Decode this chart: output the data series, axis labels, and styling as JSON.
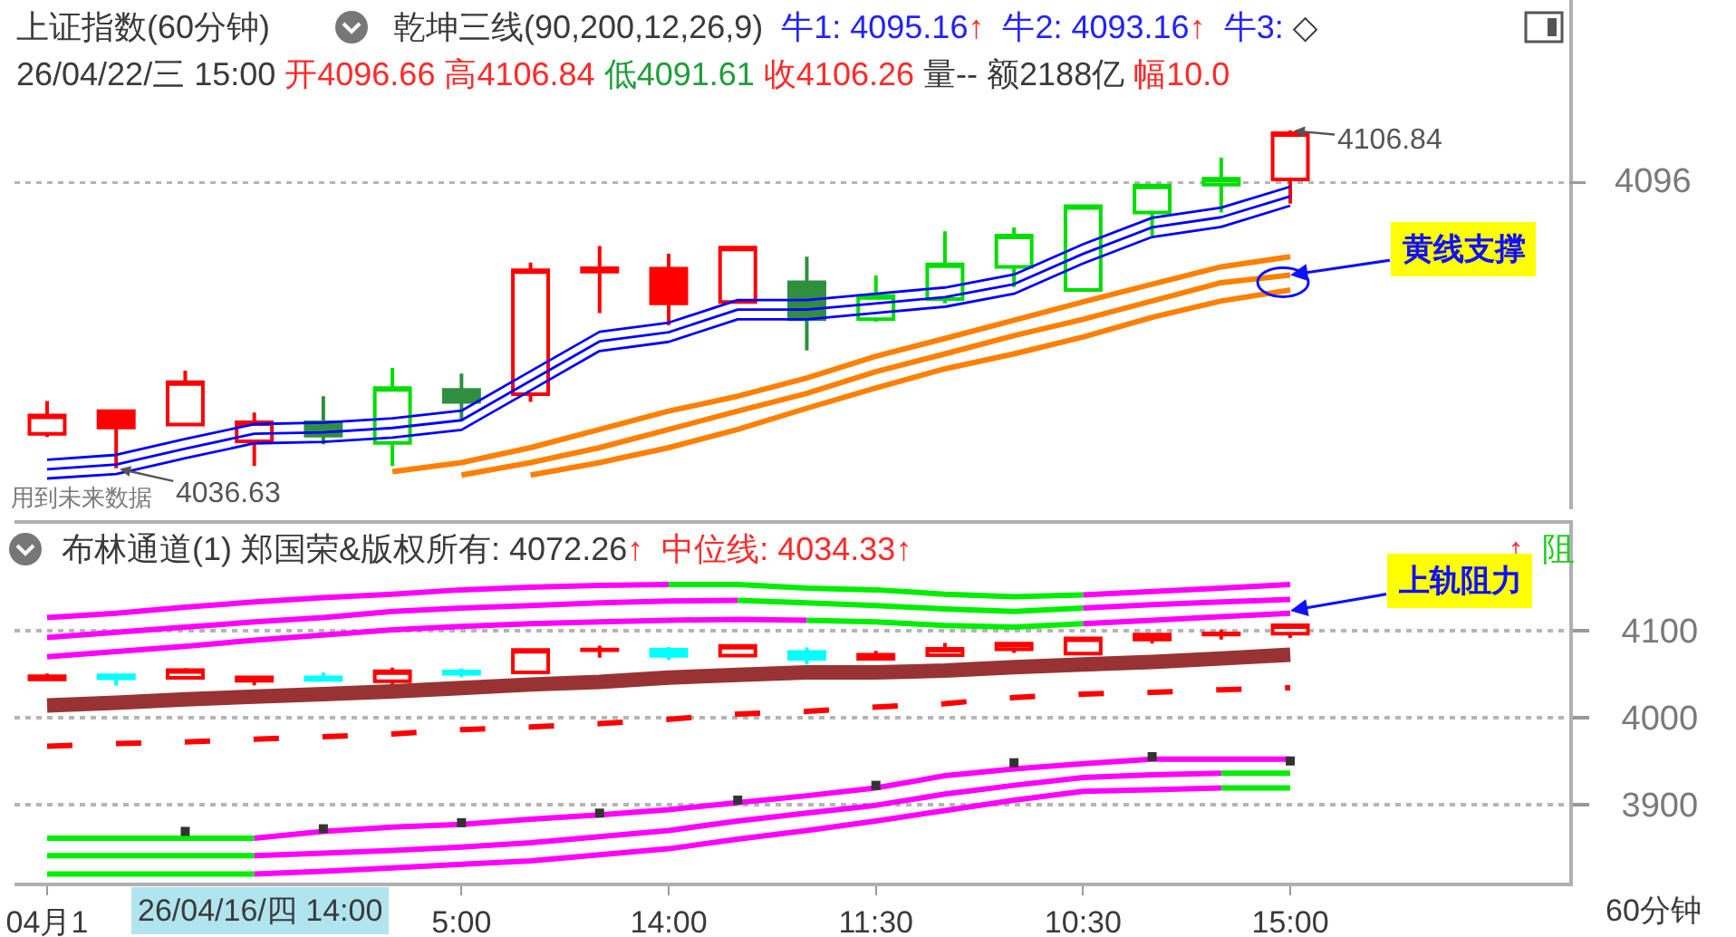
{
  "chart_data": [
    {
      "type": "candlestick",
      "title": "上证指数(60分钟)",
      "subtitle": "乾坤三线(90,200,12,26,9)",
      "categories": [
        null,
        null,
        null,
        null,
        null,
        null,
        null,
        null,
        null,
        null,
        null,
        null,
        null,
        null,
        null,
        null,
        null,
        null,
        null
      ],
      "ohlc": [
        [
          4043.8,
          4050.6,
          4043.1,
          4047.6
        ],
        [
          4048.5,
          4048.8,
          4036.63,
          4045.1
        ],
        [
          4045.7,
          4056.9,
          4045.7,
          4054.5
        ],
        [
          4042.2,
          4048.2,
          4037.1,
          4046.2
        ],
        [
          4046.2,
          4051.6,
          4041.6,
          4043.4
        ],
        [
          4041.9,
          4057.5,
          4037.1,
          4053.3
        ],
        [
          4052.9,
          4056.3,
          4046.4,
          4050.4
        ],
        [
          4052.0,
          4079.4,
          4050.4,
          4077.8
        ],
        [
          4077.5,
          4082.8,
          4068.9,
          4078.2
        ],
        [
          4078.1,
          4081.2,
          4066.4,
          4070.9
        ],
        [
          4071.2,
          4082.5,
          4071.2,
          4082.5
        ],
        [
          4075.3,
          4080.6,
          4061.1,
          4067.6
        ],
        [
          4067.6,
          4076.7,
          4067.1,
          4072.4
        ],
        [
          4071.8,
          4085.9,
          4070.9,
          4079.0
        ],
        [
          4078.5,
          4086.7,
          4074.3,
          4085.0
        ],
        [
          4073.7,
          4091.3,
          4073.7,
          4091.1
        ],
        [
          4089.8,
          4095.7,
          4085.0,
          4095.4
        ],
        [
          4095.6,
          4101.2,
          4089.8,
          4096.8
        ],
        [
          4096.66,
          4106.84,
          4091.61,
          4106.26
        ]
      ],
      "colors": [
        "#ff0000",
        "#ff0000",
        "#ff0000",
        "#ff0000",
        "#2f8f3f",
        "#00dd00",
        "#2f8f3f",
        "#ff0000",
        "#ff0000",
        "#ff0000",
        "#ff0000",
        "#2f8f3f",
        "#00dd00",
        "#00dd00",
        "#00dd00",
        "#00dd00",
        "#00dd00",
        "#00dd00",
        "#ff0000"
      ],
      "series": [
        {
          "type": "line",
          "color": "#0000ff",
          "values": [
            4038.4,
            4039.4,
            4042.7,
            4045.8,
            4046.1,
            4047.0,
            4048.6,
            4056.8,
            4065.0,
            4066.9,
            4071.6,
            4071.6,
            4072.9,
            4074.2,
            4076.9,
            4083.2,
            4088.7,
            4090.8,
            4095.16
          ]
        },
        {
          "type": "line",
          "color": "#0000ff",
          "values": [
            4036.4,
            4037.4,
            4040.7,
            4043.8,
            4044.1,
            4045.0,
            4046.6,
            4054.8,
            4063.0,
            4064.9,
            4069.6,
            4069.6,
            4070.9,
            4072.2,
            4074.9,
            4081.2,
            4086.7,
            4088.8,
            4093.16
          ]
        },
        {
          "type": "line",
          "color": "#0000ff",
          "values": [
            4034.5,
            4035.4,
            4038.7,
            4041.8,
            4042.1,
            4043.0,
            4044.6,
            4052.8,
            4061.0,
            4062.9,
            4067.6,
            4067.6,
            4068.9,
            4070.2,
            4072.9,
            4079.2,
            4084.7,
            4086.8,
            4091.2
          ]
        },
        {
          "type": "line",
          "color": "#ff8000",
          "values": [
            null,
            null,
            null,
            null,
            null,
            4035.9,
            4037.8,
            4040.9,
            4044.7,
            4048.5,
            4051.6,
            4055.4,
            4059.9,
            4063.6,
            4067.4,
            4071.2,
            4074.9,
            4078.5,
            4080.6
          ]
        },
        {
          "type": "line",
          "color": "#ff8000",
          "values": [
            null,
            null,
            null,
            null,
            null,
            null,
            4035.2,
            4037.8,
            4040.9,
            4044.7,
            4048.5,
            4052.2,
            4056.7,
            4060.4,
            4064.2,
            4067.6,
            4071.4,
            4075.2,
            4076.8
          ]
        },
        {
          "type": "line",
          "color": "#ff8000",
          "values": [
            null,
            null,
            null,
            null,
            null,
            null,
            null,
            4035.2,
            4037.8,
            4040.9,
            4044.7,
            4049.1,
            4053.3,
            4057.3,
            4060.4,
            4063.9,
            4068.0,
            4071.4,
            4073.7
          ]
        }
      ],
      "ref_lines": [
        {
          "axis": "y",
          "value": 4096,
          "label": "4096",
          "color": "#b5b5b5",
          "line_style": "dotted"
        }
      ],
      "annotations": [
        "牛1: 4095.16",
        "↑",
        "牛2: 4093.16",
        "↑",
        "牛3:",
        "◇",
        "26/04/22/三 15:00",
        "开4096.66",
        "高4106.84",
        "低4091.61",
        "收4106.26",
        "量--",
        "额2188亿",
        "幅10.0",
        "4106.84",
        "4036.63",
        "黄线支撑",
        "用到未来数据"
      ]
    },
    {
      "type": "candlestick",
      "title": "布林通道(1)",
      "categories": [
        "04月1",
        null,
        null,
        null,
        null,
        null,
        "5:00",
        null,
        null,
        "14:00",
        null,
        null,
        "11:30",
        null,
        null,
        "10:30",
        null,
        null,
        "15:00"
      ],
      "ohlc": [
        [
          4043.8,
          4050.6,
          4043.1,
          4047.6
        ],
        [
          4048.5,
          4048.8,
          4036.63,
          4045.1
        ],
        [
          4045.7,
          4056.9,
          4045.7,
          4054.5
        ],
        [
          4042.2,
          4048.2,
          4037.1,
          4046.2
        ],
        [
          4046.2,
          4051.6,
          4041.6,
          4043.4
        ],
        [
          4041.9,
          4057.5,
          4037.1,
          4053.3
        ],
        [
          4052.9,
          4056.3,
          4046.4,
          4050.4
        ],
        [
          4052.0,
          4079.4,
          4050.4,
          4077.8
        ],
        [
          4077.5,
          4082.8,
          4068.9,
          4078.2
        ],
        [
          4078.1,
          4081.2,
          4066.4,
          4070.9
        ],
        [
          4071.2,
          4082.5,
          4071.2,
          4082.5
        ],
        [
          4075.3,
          4080.6,
          4061.1,
          4067.6
        ],
        [
          4067.6,
          4076.7,
          4067.1,
          4072.4
        ],
        [
          4071.8,
          4085.9,
          4070.9,
          4079.0
        ],
        [
          4078.5,
          4086.7,
          4074.3,
          4085.0
        ],
        [
          4073.7,
          4091.3,
          4073.7,
          4091.1
        ],
        [
          4089.8,
          4095.7,
          4085.0,
          4095.4
        ],
        [
          4095.6,
          4101.2,
          4089.8,
          4096.8
        ],
        [
          4096.66,
          4106.84,
          4091.61,
          4106.26
        ]
      ],
      "colors": [
        "#ff0000",
        "#00ffff",
        "#ff0000",
        "#ff0000",
        "#00ffff",
        "#ff0000",
        "#00ffff",
        "#ff0000",
        "#ff0000",
        "#00ffff",
        "#ff0000",
        "#00ffff",
        "#ff0000",
        "#ff0000",
        "#ff0000",
        "#ff0000",
        "#ff0000",
        "#ff0000",
        "#ff0000"
      ],
      "series": [
        {
          "type": "line",
          "color": "#ff00ff",
          "values": [
            4115,
            4120,
            4127,
            4133,
            4138,
            4142,
            4147,
            4150,
            4152,
            4153,
            null,
            null,
            null,
            null,
            null,
            4141,
            4145,
            4149,
            4153
          ]
        },
        {
          "type": "line",
          "color": "#00ee00",
          "values": [
            null,
            null,
            null,
            null,
            null,
            null,
            null,
            null,
            null,
            4153,
            4153,
            4149,
            4147,
            4142,
            4139,
            4141,
            null,
            null,
            null
          ]
        },
        {
          "type": "line",
          "color": "#ff00ff",
          "values": [
            4092,
            4098,
            4104,
            4110,
            4115,
            4122,
            4126,
            4129,
            4132,
            4134,
            4135,
            null,
            null,
            null,
            null,
            4126,
            4130,
            4133,
            4136
          ]
        },
        {
          "type": "line",
          "color": "#00ee00",
          "values": [
            null,
            null,
            null,
            null,
            null,
            null,
            null,
            null,
            null,
            null,
            4135,
            4132,
            4129,
            4125,
            4122,
            4126,
            null,
            null,
            null
          ]
        },
        {
          "type": "line",
          "color": "#ff00ff",
          "values": [
            4070,
            4076,
            4082,
            4089,
            4095,
            4101,
            4105,
            4108,
            4110,
            4112,
            4113,
            4112,
            null,
            null,
            null,
            4108,
            4112,
            4116,
            4120
          ]
        },
        {
          "type": "line",
          "color": "#00ee00",
          "values": [
            null,
            null,
            null,
            null,
            null,
            null,
            null,
            null,
            null,
            null,
            null,
            4112,
            4110,
            4106,
            4104,
            4108,
            null,
            null,
            null
          ]
        },
        {
          "type": "line",
          "color": "#993333",
          "values": [
            4014,
            4017,
            4021,
            4024,
            4027,
            4030,
            4034,
            4038,
            4041,
            4046,
            4049,
            4052,
            4052,
            4054,
            4058,
            4061,
            4064,
            4068,
            4072.26
          ]
        },
        {
          "type": "line",
          "color": "#ff0000",
          "line_style": "dashed",
          "values": [
            3967,
            3970,
            3972,
            3975,
            3978,
            3981,
            3986,
            3989,
            3993,
            3998,
            4004,
            4007,
            4012,
            4016,
            4023,
            4027,
            4029,
            4032,
            4034.33
          ]
        },
        {
          "type": "line",
          "color": "#00ee00",
          "values": [
            3861,
            3861,
            3861,
            3861,
            null,
            null,
            null,
            null,
            null,
            null,
            null,
            null,
            null,
            null,
            null,
            null,
            null,
            null,
            null
          ]
        },
        {
          "type": "line",
          "color": "#ff00ff",
          "values": [
            null,
            null,
            null,
            3861,
            3869,
            3874,
            3877,
            3883,
            3888,
            3894,
            3902,
            3910,
            3919,
            3933,
            3941,
            3947,
            3952,
            3952,
            3952
          ]
        },
        {
          "type": "line",
          "color": "#00ee00",
          "values": [
            3841,
            3841,
            3841,
            3841,
            null,
            null,
            null,
            null,
            null,
            null,
            null,
            null,
            null,
            null,
            null,
            null,
            null,
            3936,
            3936
          ]
        },
        {
          "type": "line",
          "color": "#ff00ff",
          "values": [
            null,
            null,
            null,
            3841,
            3844,
            3847,
            3851,
            3856,
            3863,
            3870,
            3881,
            3890,
            3899,
            3912,
            3922,
            3931,
            3934,
            3936,
            null
          ]
        },
        {
          "type": "line",
          "color": "#00ee00",
          "values": [
            3820,
            3820,
            3820,
            3820,
            null,
            null,
            null,
            null,
            null,
            null,
            null,
            null,
            null,
            null,
            null,
            null,
            null,
            3919,
            3919
          ]
        },
        {
          "type": "line",
          "color": "#ff00ff",
          "values": [
            null,
            null,
            null,
            3820,
            3823,
            3827,
            3831,
            3835,
            3842,
            3849,
            3860,
            3870,
            3881,
            3893,
            3905,
            3915,
            3917,
            3919,
            null
          ]
        },
        {
          "type": "scatter",
          "color": "#333333",
          "marker": "square",
          "values": [
            null,
            null,
            3869,
            null,
            3872,
            null,
            3879,
            null,
            3890,
            null,
            3905,
            null,
            3922,
            null,
            3948,
            null,
            3955,
            null,
            3950
          ]
        }
      ],
      "ylim": [
        3810,
        4223
      ],
      "yticks": [
        3900,
        4000,
        4100
      ],
      "grid": "y",
      "annotations": [
        "郑国荣&版权所有: 4072.26",
        "↑",
        "中位线: 4034.33",
        "↑",
        "↑",
        "阻",
        {
          "text": "上轨阻力",
          "x": "15:00",
          "y": 4123
        },
        "26/04/16/四 14:00",
        "60分钟"
      ]
    }
  ]
}
